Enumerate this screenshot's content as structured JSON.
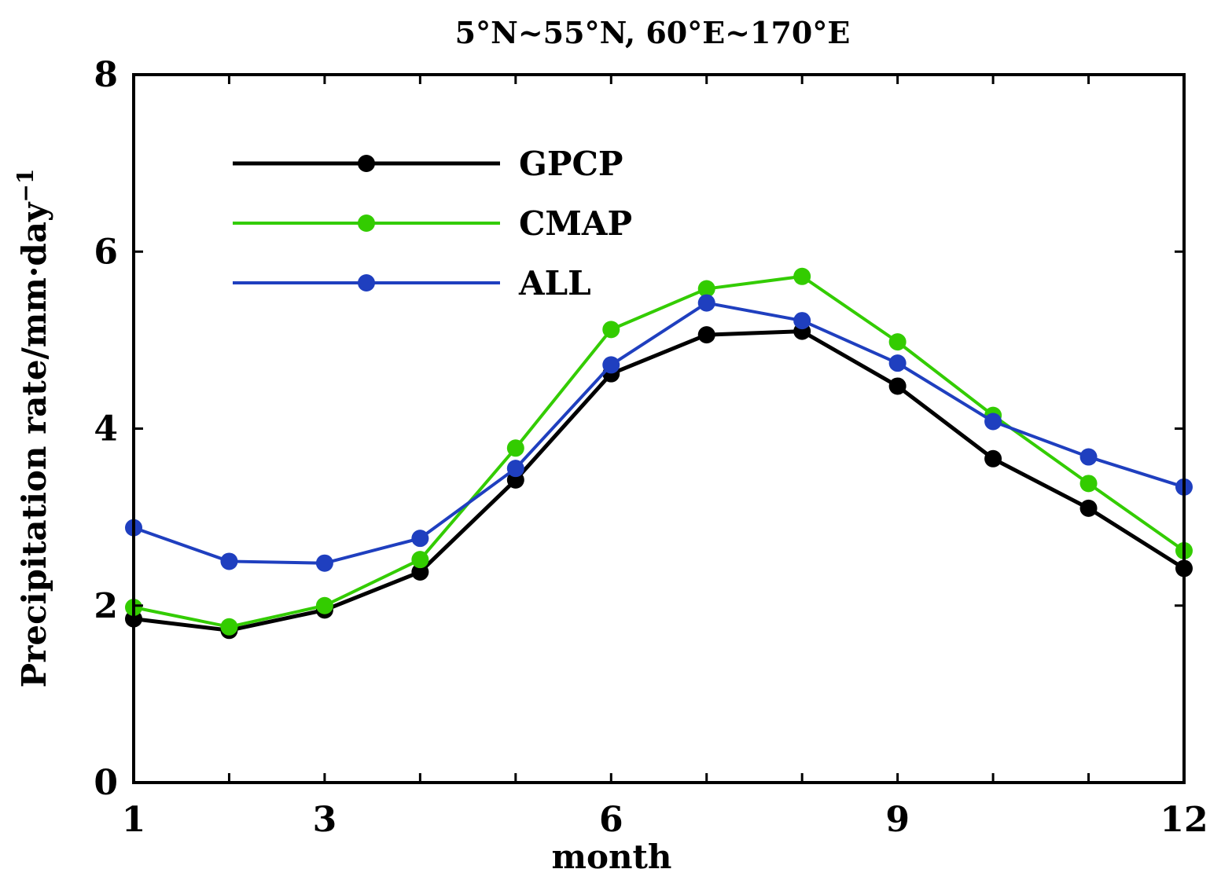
{
  "chart_data": {
    "type": "line",
    "title": "5°N~55°N, 60°E~170°E",
    "xlabel": "month",
    "ylabel": "Precipitation rate/mm·day",
    "ylabel_superscript": "−1",
    "xlim": [
      1,
      12
    ],
    "ylim": [
      0,
      8
    ],
    "xticks": [
      1,
      3,
      6,
      9,
      12
    ],
    "yticks": [
      0,
      2,
      4,
      6,
      8
    ],
    "x": [
      1,
      2,
      3,
      4,
      5,
      6,
      7,
      8,
      9,
      10,
      11,
      12
    ],
    "legend_position": "top-left",
    "series": [
      {
        "name": "GPCP",
        "color": "#000000",
        "values": [
          1.85,
          1.72,
          1.95,
          2.38,
          3.42,
          4.62,
          5.06,
          5.1,
          4.48,
          3.66,
          3.1,
          2.42
        ]
      },
      {
        "name": "CMAP",
        "color": "#33cc00",
        "values": [
          1.98,
          1.76,
          2.0,
          2.52,
          3.78,
          5.12,
          5.58,
          5.72,
          4.98,
          4.15,
          3.38,
          2.62
        ]
      },
      {
        "name": "ALL",
        "color": "#1f3fbf",
        "values": [
          2.88,
          2.5,
          2.48,
          2.76,
          3.55,
          4.72,
          5.42,
          5.22,
          4.74,
          4.08,
          3.68,
          3.34
        ]
      }
    ]
  }
}
